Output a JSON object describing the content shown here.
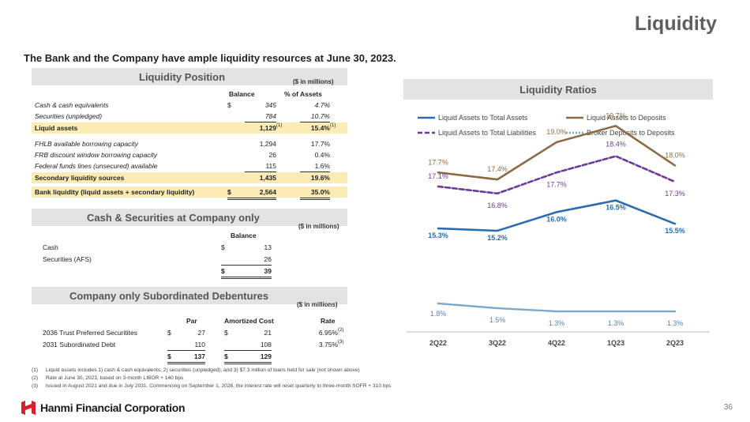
{
  "header": {
    "title": "Liquidity",
    "subtitle": "The Bank and the Company have ample liquidity resources at June 30, 2023."
  },
  "liquidity_position": {
    "title": "Liquidity Position",
    "units": "($ in millions)",
    "col_balance": "Balance",
    "col_pct": "% of Assets",
    "currency": "$",
    "rows": [
      {
        "label": "Cash & cash equivalents",
        "balance": "345",
        "pct": "4.7%"
      },
      {
        "label": "Securities (unpledged)",
        "balance": "784",
        "pct": "10.7%"
      },
      {
        "label": "Liquid assets",
        "balance": "1,129",
        "pct": "15.4%",
        "note": "(1)"
      },
      {
        "label": "FHLB available borrowing capacity",
        "balance": "1,294",
        "pct": "17.7%"
      },
      {
        "label": "FRB discount window borrowing capacity",
        "balance": "26",
        "pct": "0.4%"
      },
      {
        "label": "Federal funds lines (unsecured) available",
        "balance": "115",
        "pct": "1.6%"
      },
      {
        "label": "Secondary liquidity sources",
        "balance": "1,435",
        "pct": "19.6%"
      },
      {
        "label": "Bank liquidity (liquid assets + secondary liquidity)",
        "balance": "2,564",
        "pct": "35.0%"
      }
    ]
  },
  "cash_securities": {
    "title": "Cash & Securities at Company only",
    "units": "($ in millions)",
    "col_balance": "Balance",
    "currency": "$",
    "rows": [
      {
        "label": "Cash",
        "balance": "13"
      },
      {
        "label": "Securities (AFS)",
        "balance": "26"
      }
    ],
    "total": "39"
  },
  "subordinated": {
    "title": "Company only Subordinated Debentures",
    "units": "($ in millions)",
    "col_par": "Par",
    "col_amortized": "Amortized Cost",
    "col_rate": "Rate",
    "currency": "$",
    "rows": [
      {
        "label": "2036 Trust Preferred Securitites",
        "par": "27",
        "amortized": "21",
        "rate": "6.95%",
        "note": "(2)"
      },
      {
        "label": "2031 Subordinated Debt",
        "par": "110",
        "amortized": "108",
        "rate": "3.75%",
        "note": "(3)"
      }
    ],
    "total_par": "137",
    "total_amortized": "129"
  },
  "chart_data": {
    "type": "line",
    "title": "Liquidity Ratios",
    "categories": [
      "2Q22",
      "3Q22",
      "4Q22",
      "1Q23",
      "2Q23"
    ],
    "ylim": [
      0,
      22
    ],
    "series": [
      {
        "name": "Liquid Assets to Total Assets",
        "values": [
          15.3,
          15.2,
          16.0,
          16.5,
          15.5
        ],
        "labels": [
          "15.3%",
          "15.2%",
          "16.0%",
          "16.5%",
          "15.5%"
        ],
        "color": "#2a6bb3",
        "style": "solid"
      },
      {
        "name": "Liquid Assets to Deposits",
        "values": [
          17.7,
          17.4,
          19.0,
          19.7,
          18.0
        ],
        "labels": [
          "17.7%",
          "17.4%",
          "19.0%",
          "19.7%",
          "18.0%"
        ],
        "color": "#8c6a43",
        "style": "solid"
      },
      {
        "name": "Liquid Assets to Total Liabilities",
        "values": [
          17.1,
          16.8,
          17.7,
          18.4,
          17.3
        ],
        "labels": [
          "17.1%",
          "16.8%",
          "17.7%",
          "18.4%",
          "17.3%"
        ],
        "color": "#6b3a9c",
        "style": "dashed"
      },
      {
        "name": "Broker Deposits to Deposits",
        "values": [
          1.8,
          1.5,
          1.3,
          1.3,
          1.3
        ],
        "labels": [
          "1.8%",
          "1.5%",
          "1.3%",
          "1.3%",
          "1.3%"
        ],
        "color": "#7aa6c8",
        "style": "dotted"
      }
    ],
    "legend_position": "top"
  },
  "footnotes": [
    {
      "num": "(1)",
      "text": "Liquid assets includes 1) cash & cash equivalents, 2) securities (unpledged), and 3) $7.3 million of loans held for sale (not shown above)"
    },
    {
      "num": "(2)",
      "text": "Rate at June 30, 2023, based on 3-month LIBOR + 140 bps"
    },
    {
      "num": "(3)",
      "text": "Issued in August 2021 and due in July 2031. Commencing on September 1, 2026, the interest rate will reset quarterly to three-month SOFR + 310 bps"
    }
  ],
  "footer": {
    "company": "Hanmi Financial Corporation",
    "page": "36",
    "logo_color": "#d71f27"
  }
}
